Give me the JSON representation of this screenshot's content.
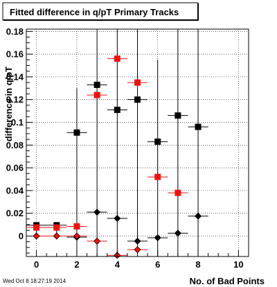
{
  "chart_data": {
    "type": "scatter",
    "title": "Fitted difference in q/pT Primary Tracks",
    "xlabel": "No. of Bad Points",
    "ylabel": "difference in q/pT",
    "xlim": [
      -0.5,
      10.5
    ],
    "ylim": [
      -0.018,
      0.182
    ],
    "x_ticks": [
      0,
      2,
      4,
      6,
      8,
      10
    ],
    "y_ticks": [
      0,
      0.02,
      0.04,
      0.06,
      0.08,
      0.1,
      0.12,
      0.14,
      0.16,
      0.18
    ],
    "y_tick_labels": [
      "0",
      "0.02",
      "0.04",
      "0.06",
      "0.08",
      "0.1",
      "0.12",
      "0.14",
      "0.16",
      "0.18"
    ],
    "grid": true,
    "timestamp": "Wed Oct  8 18:27:19 2014",
    "series": [
      {
        "marker": "square",
        "color": "#000000",
        "points": [
          {
            "x": 0,
            "y": 0.0095,
            "yerr_low": 0.0095,
            "yerr_high": 0.0
          },
          {
            "x": 1,
            "y": 0.0095,
            "yerr_low": 0.0095,
            "yerr_high": 0.0
          },
          {
            "x": 2,
            "y": 0.091,
            "yerr_low": 0.109,
            "yerr_high": 0.039
          },
          {
            "x": 3,
            "y": 0.133,
            "yerr_low": 0.151,
            "yerr_high": 0.049
          },
          {
            "x": 4,
            "y": 0.111,
            "yerr_low": 0.129,
            "yerr_high": 0.071
          },
          {
            "x": 5,
            "y": 0.12,
            "yerr_low": 0.138,
            "yerr_high": 0.062
          },
          {
            "x": 6,
            "y": 0.083,
            "yerr_low": 0.101,
            "yerr_high": 0.072
          },
          {
            "x": 7,
            "y": 0.106,
            "yerr_low": 0.124,
            "yerr_high": 0.076
          },
          {
            "x": 8,
            "y": 0.096,
            "yerr_low": 0.114,
            "yerr_high": 0.086
          }
        ]
      },
      {
        "marker": "square",
        "color": "#ee1111",
        "points": [
          {
            "x": 0,
            "y": 0.0075
          },
          {
            "x": 1,
            "y": 0.0075
          },
          {
            "x": 2,
            "y": 0.0085
          },
          {
            "x": 3,
            "y": 0.124
          },
          {
            "x": 4,
            "y": 0.156
          },
          {
            "x": 5,
            "y": 0.135
          },
          {
            "x": 6,
            "y": 0.052
          },
          {
            "x": 7,
            "y": 0.038
          }
        ]
      },
      {
        "marker": "diamond",
        "color": "#000000",
        "points": [
          {
            "x": 0,
            "y": 0.0
          },
          {
            "x": 1,
            "y": 0.0
          },
          {
            "x": 2,
            "y": -0.001
          },
          {
            "x": 3,
            "y": 0.021
          },
          {
            "x": 4,
            "y": 0.0155
          },
          {
            "x": 5,
            "y": -0.0045
          },
          {
            "x": 6,
            "y": -0.0015
          },
          {
            "x": 7,
            "y": 0.0025
          },
          {
            "x": 8,
            "y": 0.0175
          }
        ]
      },
      {
        "marker": "diamond",
        "color": "#ee1111",
        "points": [
          {
            "x": 0,
            "y": 0.0
          },
          {
            "x": 1,
            "y": 0.0
          },
          {
            "x": 2,
            "y": 0.0
          },
          {
            "x": 3,
            "y": -0.0045
          },
          {
            "x": 4,
            "y": -0.017
          },
          {
            "x": 5,
            "y": -0.012
          }
        ]
      }
    ]
  }
}
